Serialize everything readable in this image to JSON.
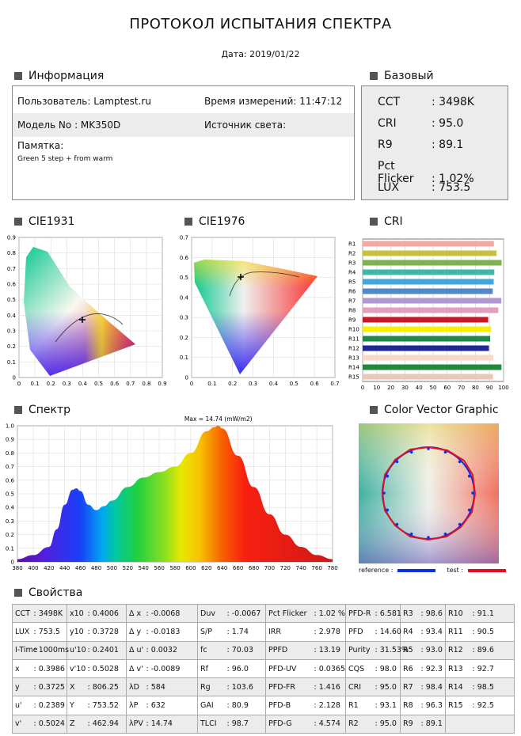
{
  "header": {
    "title": "ПРОТОКОЛ ИСПЫТАНИЯ СПЕКТРА",
    "date": "Дата: 2019/01/22"
  },
  "sections": {
    "info": "Информация",
    "base": "Базовый",
    "cie1931": "CIE1931",
    "cie1976": "CIE1976",
    "cri": "CRI",
    "spectrum": "Спектр",
    "cvg": "Color Vector Graphic",
    "props": "Свойства"
  },
  "info": {
    "user": "Пользователь: Lamptest.ru",
    "time": "Время измерений: 11:47:12",
    "model": "Модель No : MK350D",
    "source": "Источник света:",
    "memo_label": "Памятка:",
    "memo": "Green 5 step + from warm"
  },
  "base": [
    {
      "k": "CCT",
      "v": ": 3498K"
    },
    {
      "k": "CRI",
      "v": ": 95.0"
    },
    {
      "k": "R9",
      "v": ": 89.1"
    },
    {
      "k": "Pct Flicker",
      "v": ": 1.02%"
    },
    {
      "k": "LUX",
      "v": ": 753.5"
    }
  ],
  "cie1931_ticks": {
    "x": [
      "0",
      "0.1",
      "0.2",
      "0.3",
      "0.4",
      "0.5",
      "0.6",
      "0.7",
      "0.8",
      "0.9"
    ],
    "y": [
      "0",
      "0.1",
      "0.2",
      "0.3",
      "0.4",
      "0.5",
      "0.6",
      "0.7",
      "0.8",
      "0.9"
    ]
  },
  "cie1976_ticks": {
    "x": [
      "0",
      "0.1",
      "0.2",
      "0.3",
      "0.4",
      "0.5",
      "0.6",
      "0.7"
    ],
    "y": [
      "0",
      "0.1",
      "0.2",
      "0.3",
      "0.4",
      "0.5",
      "0.6",
      "0.7"
    ]
  },
  "cri_chart": {
    "labels": [
      "R1",
      "R2",
      "R3",
      "R4",
      "R5",
      "R6",
      "R7",
      "R8",
      "R9",
      "R10",
      "R11",
      "R12",
      "R13",
      "R14",
      "R15"
    ],
    "values": [
      93.1,
      95.0,
      98.6,
      93.4,
      93.0,
      92.3,
      98.4,
      96.3,
      89.1,
      91.1,
      90.5,
      89.6,
      92.7,
      98.5,
      92.5
    ],
    "colors": [
      "#f0aaa0",
      "#c8c040",
      "#80b050",
      "#40b8a8",
      "#40a8d8",
      "#5088c8",
      "#b098d0",
      "#e0a0c0",
      "#c81828",
      "#f8f000",
      "#208848",
      "#202898",
      "#f8d8c8",
      "#208838",
      "#e8c8b8"
    ],
    "ticks": [
      "0",
      "10",
      "20",
      "30",
      "40",
      "50",
      "60",
      "70",
      "80",
      "90",
      "100"
    ]
  },
  "chart_data": {
    "type": "area",
    "title": "Max = 14.74 (mW/m2)",
    "x": [
      380,
      400,
      420,
      430,
      440,
      450,
      455,
      460,
      470,
      480,
      490,
      500,
      520,
      540,
      560,
      580,
      600,
      620,
      630,
      635,
      640,
      660,
      680,
      700,
      720,
      740,
      760,
      780
    ],
    "y": [
      0.02,
      0.05,
      0.11,
      0.24,
      0.42,
      0.53,
      0.54,
      0.52,
      0.42,
      0.38,
      0.41,
      0.45,
      0.55,
      0.62,
      0.66,
      0.7,
      0.8,
      0.96,
      0.99,
      1.0,
      0.98,
      0.78,
      0.55,
      0.35,
      0.2,
      0.11,
      0.05,
      0.02
    ],
    "xticks": [
      "380",
      "400",
      "420",
      "440",
      "460",
      "480",
      "500",
      "520",
      "540",
      "560",
      "580",
      "600",
      "620",
      "640",
      "660",
      "680",
      "700",
      "720",
      "740",
      "760",
      "780"
    ],
    "yticks": [
      "0",
      "0.1",
      "0.2",
      "0.3",
      "0.4",
      "0.5",
      "0.6",
      "0.7",
      "0.8",
      "0.9",
      "1.0"
    ],
    "xlim": [
      380,
      780
    ],
    "ylim": [
      0,
      1.0
    ]
  },
  "cvg": {
    "reference": "reference :",
    "test": "test :",
    "ref_color": "#1030e0",
    "test_color": "#e01020"
  },
  "props": [
    [
      "CCT",
      ": 3498K",
      "x10",
      ": 0.4006",
      "Δ x",
      ": -0.0068",
      "Duv",
      ": -0.0067",
      "Pct Flicker",
      ": 1.02 %",
      "PFD-R",
      ": 6.581",
      "R3",
      ": 98.6",
      "R10",
      ": 91.1"
    ],
    [
      "LUX",
      ": 753.5",
      "y10",
      ": 0.3728",
      "Δ y",
      ": -0.0183",
      "S/P",
      ": 1.74",
      "IRR",
      ": 2.978",
      "PFD",
      ": 14.60",
      "R4",
      ": 93.4",
      "R11",
      ": 90.5"
    ],
    [
      "I-Time",
      ": 1000ms",
      "u'10",
      ": 0.2401",
      "Δ u'",
      ": 0.0032",
      "fc",
      ": 70.03",
      "PPFD",
      ": 13.19",
      "Purity",
      ": 31.53%",
      "R5",
      ": 93.0",
      "R12",
      ": 89.6"
    ],
    [
      "x",
      ": 0.3986",
      "v'10",
      ": 0.5028",
      "Δ v'",
      ": -0.0089",
      "Rf",
      ": 96.0",
      "PFD-UV",
      ": 0.0365",
      "CQS",
      ": 98.0",
      "R6",
      ": 92.3",
      "R13",
      ": 92.7"
    ],
    [
      "y",
      ": 0.3725",
      "X",
      ": 806.25",
      "λD",
      ": 584",
      "Rg",
      ": 103.6",
      "PFD-FR",
      ": 1.416",
      "CRI",
      ": 95.0",
      "R7",
      ": 98.4",
      "R14",
      ": 98.5"
    ],
    [
      "u'",
      ": 0.2389",
      "Y",
      ": 753.52",
      "λP",
      ": 632",
      "GAI",
      ": 80.9",
      "PFD-B",
      ": 2.128",
      "R1",
      ": 93.1",
      "R8",
      ": 96.3",
      "R15",
      ": 92.5"
    ],
    [
      "v'",
      ": 0.5024",
      "Z",
      ": 462.94",
      "λPV",
      ": 14.74",
      "TLCI",
      ": 98.7",
      "PFD-G",
      ": 4.574",
      "R2",
      ": 95.0",
      "R9",
      ": 89.1",
      "",
      ""
    ]
  ]
}
